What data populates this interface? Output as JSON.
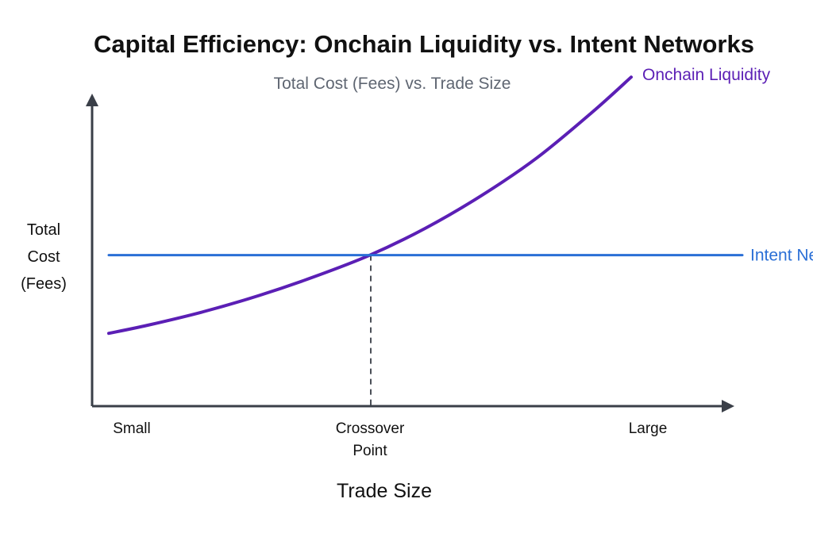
{
  "chart_data": {
    "type": "line",
    "title": "Capital Efficiency: Onchain Liquidity vs. Intent Networks",
    "subtitle": "Total Cost (Fees) vs. Trade Size",
    "xlabel": "Trade Size",
    "ylabel": [
      "Total",
      "Cost",
      "(Fees)"
    ],
    "x_ticks": [
      {
        "at": 0.08,
        "lines": [
          "Small"
        ]
      },
      {
        "at": 0.5,
        "lines": [
          "Crossover",
          "Point"
        ]
      },
      {
        "at": 1.0,
        "lines": [
          "Large"
        ]
      }
    ],
    "xlim": [
      0,
      1.2
    ],
    "ylim": [
      0,
      1.2
    ],
    "grid": false,
    "crossover": {
      "x": 0.5,
      "y": 0.56
    },
    "series": [
      {
        "name": "Onchain Liquidity",
        "color": "#5b1fb5",
        "x": [
          0.03,
          0.1,
          0.2,
          0.3,
          0.4,
          0.5,
          0.6,
          0.7,
          0.8,
          0.9,
          0.97
        ],
        "y": [
          0.27,
          0.3,
          0.35,
          0.41,
          0.48,
          0.56,
          0.66,
          0.78,
          0.92,
          1.09,
          1.22
        ]
      },
      {
        "name": "Intent Network",
        "color": "#2a6fd6",
        "x": [
          0.03,
          1.17
        ],
        "y": [
          0.56,
          0.56
        ]
      }
    ]
  },
  "colors": {
    "axis": "#3a3f48",
    "dashed": "#4a4f57"
  }
}
